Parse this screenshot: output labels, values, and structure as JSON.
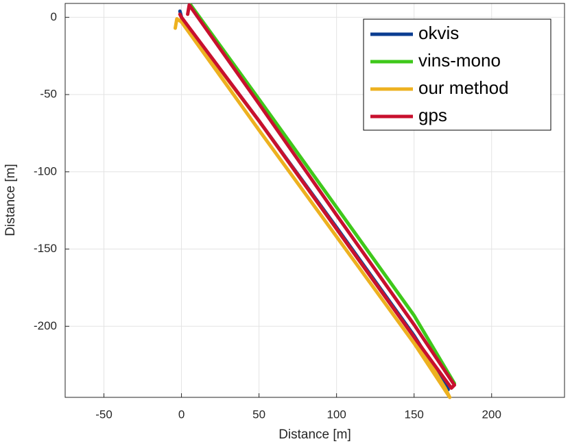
{
  "chart_data": {
    "type": "line",
    "xlabel": "Distance [m]",
    "ylabel": "Distance [m]",
    "xlim": [
      -75,
      247
    ],
    "ylim": [
      -246,
      9
    ],
    "xticks": [
      -50,
      0,
      50,
      100,
      150,
      200
    ],
    "yticks": [
      0,
      -50,
      -100,
      -150,
      -200
    ],
    "grid": true,
    "legend": "upper right",
    "series": [
      {
        "name": "okvis",
        "color": "#0b3d91",
        "x": [
          -1,
          0,
          2,
          50,
          100,
          150,
          172
        ],
        "values": [
          4,
          0,
          -3,
          -67,
          -136,
          -206,
          -241
        ]
      },
      {
        "name": "vins-mono",
        "color": "#3fc81b",
        "x": [
          6,
          50,
          100,
          150,
          176
        ],
        "values": [
          8,
          -53,
          -123,
          -193,
          -237
        ]
      },
      {
        "name": "our method",
        "color": "#edb120",
        "x": [
          -4,
          -3,
          0,
          50,
          100,
          150,
          173,
          170,
          150,
          100,
          50,
          5,
          0
        ],
        "values": [
          -7,
          -1,
          -3,
          -73,
          -142,
          -211,
          -246,
          -240,
          -207,
          -137,
          -67,
          -8,
          -1
        ]
      },
      {
        "name": "gps",
        "color": "#c8102e",
        "x": [
          4,
          5,
          50,
          100,
          150,
          176,
          174,
          150,
          100,
          50,
          0,
          -1
        ],
        "values": [
          2,
          8,
          -56,
          -128,
          -199,
          -238,
          -240,
          -207,
          -137,
          -67,
          0,
          2
        ]
      }
    ]
  }
}
